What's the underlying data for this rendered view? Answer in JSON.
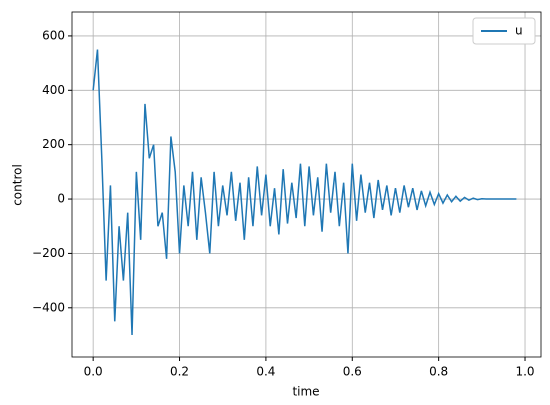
{
  "chart_data": {
    "type": "line",
    "xlabel": "time",
    "ylabel": "control",
    "x": [
      0,
      0.01,
      0.02,
      0.03,
      0.04,
      0.05,
      0.06,
      0.07,
      0.08,
      0.09,
      0.1,
      0.11,
      0.12,
      0.13,
      0.14,
      0.15,
      0.16,
      0.17,
      0.18,
      0.19,
      0.2,
      0.21,
      0.22,
      0.23,
      0.24,
      0.25,
      0.26,
      0.27,
      0.28,
      0.29,
      0.3,
      0.31,
      0.32,
      0.33,
      0.34,
      0.35,
      0.36,
      0.37,
      0.38,
      0.39,
      0.4,
      0.41,
      0.42,
      0.43,
      0.44,
      0.45,
      0.46,
      0.47,
      0.48,
      0.49,
      0.5,
      0.51,
      0.52,
      0.53,
      0.54,
      0.55,
      0.56,
      0.57,
      0.58,
      0.59,
      0.6,
      0.61,
      0.62,
      0.63,
      0.64,
      0.65,
      0.66,
      0.67,
      0.68,
      0.69,
      0.7,
      0.71,
      0.72,
      0.73,
      0.74,
      0.75,
      0.76,
      0.77,
      0.78,
      0.79,
      0.8,
      0.81,
      0.82,
      0.83,
      0.84,
      0.85,
      0.86,
      0.87,
      0.88,
      0.89,
      0.9,
      0.91,
      0.92,
      0.93,
      0.94,
      0.95,
      0.96,
      0.97,
      0.98
    ],
    "series": [
      {
        "name": "u",
        "color": "#1f77b4",
        "values": [
          400,
          550,
          150,
          -300,
          50,
          -450,
          -100,
          -300,
          -50,
          -500,
          100,
          -150,
          350,
          150,
          200,
          -100,
          -50,
          -220,
          230,
          100,
          -200,
          50,
          -100,
          100,
          -150,
          80,
          -50,
          -200,
          100,
          -100,
          50,
          -60,
          100,
          -80,
          60,
          -150,
          80,
          -100,
          120,
          -60,
          90,
          -100,
          40,
          -130,
          110,
          -90,
          60,
          -70,
          130,
          -100,
          120,
          -60,
          80,
          -120,
          130,
          -50,
          100,
          -100,
          60,
          -200,
          130,
          -80,
          90,
          -50,
          60,
          -70,
          70,
          -40,
          50,
          -60,
          40,
          -50,
          50,
          -30,
          40,
          -40,
          30,
          -25,
          25,
          -20,
          20,
          -15,
          15,
          -10,
          10,
          -8,
          6,
          -4,
          3,
          -2,
          1,
          0,
          0,
          0,
          0,
          0,
          0,
          0,
          0
        ]
      }
    ],
    "xlim": [
      -0.049,
      1.037
    ],
    "ylim": [
      -581,
      688
    ],
    "xticks": [
      {
        "value": 0,
        "label": "0.0"
      },
      0.2,
      0.4,
      0.6,
      0.8,
      {
        "value": 1,
        "label": "1.0"
      }
    ],
    "yticks": [
      {
        "value": -400,
        "label": "−400"
      },
      {
        "value": -200,
        "label": "−200"
      },
      0,
      200,
      400,
      600
    ],
    "grid": true,
    "legend": "upper right"
  }
}
